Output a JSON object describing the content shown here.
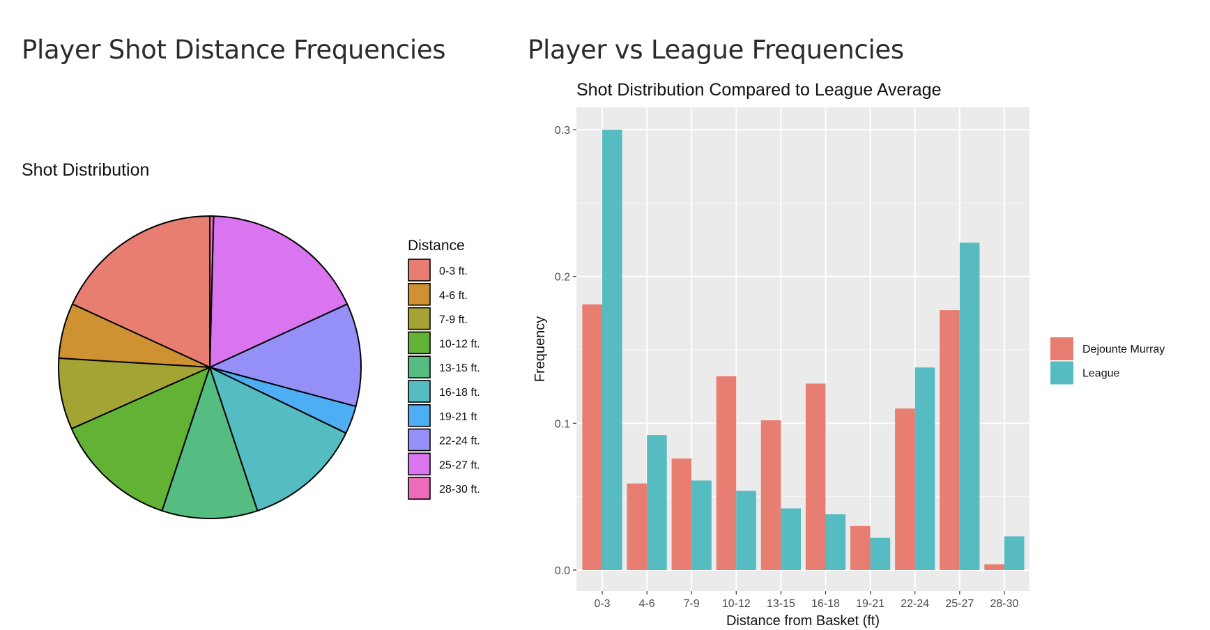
{
  "left_panel": {
    "heading": "Player Shot Distance Frequencies"
  },
  "right_panel": {
    "heading": "Player vs League Frequencies"
  },
  "chart_data": [
    {
      "type": "pie",
      "title": "Shot Distribution",
      "legend_title": "Distance",
      "legend_position": "right",
      "categories": [
        "0-3 ft.",
        "4-6 ft.",
        "7-9 ft.",
        "10-12 ft.",
        "13-15 ft.",
        "16-18 ft.",
        "19-21 ft",
        "22-24 ft.",
        "25-27 ft.",
        "28-30 ft."
      ],
      "values": [
        0.181,
        0.059,
        0.076,
        0.132,
        0.102,
        0.127,
        0.03,
        0.11,
        0.177,
        0.004
      ],
      "colors": [
        "#E87D72",
        "#CF9232",
        "#A3A434",
        "#62B235",
        "#55BC82",
        "#55BDC1",
        "#4DAEF4",
        "#9590F8",
        "#D975EE",
        "#ED6BB8"
      ]
    },
    {
      "type": "bar",
      "title": "Shot Distribution Compared to League Average",
      "xlabel": "Distance from Basket (ft)",
      "ylabel": "Frequency",
      "categories": [
        "0-3",
        "4-6",
        "7-9",
        "10-12",
        "13-15",
        "16-18",
        "19-21",
        "22-24",
        "25-27",
        "28-30"
      ],
      "series": [
        {
          "name": "Dejounte Murray",
          "color": "#E87D72",
          "values": [
            0.181,
            0.059,
            0.076,
            0.132,
            0.102,
            0.127,
            0.03,
            0.11,
            0.177,
            0.004
          ]
        },
        {
          "name": "League",
          "color": "#56BCC2",
          "values": [
            0.3,
            0.092,
            0.061,
            0.054,
            0.042,
            0.038,
            0.022,
            0.138,
            0.223,
            0.023
          ]
        }
      ],
      "ylim": [
        0,
        0.315
      ],
      "yticks": [
        "0.0",
        "0.1",
        "0.2",
        "0.3"
      ],
      "legend_position": "right",
      "grid": true
    }
  ]
}
